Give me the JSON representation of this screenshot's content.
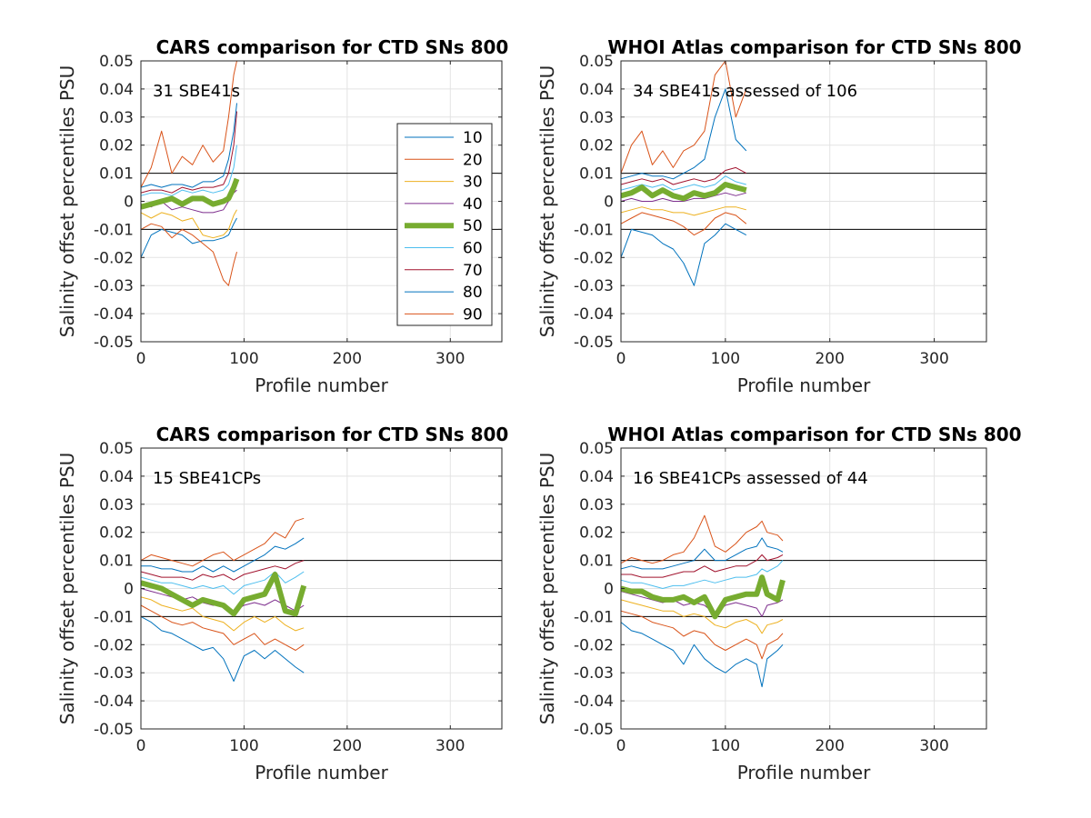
{
  "legend": {
    "entries": [
      "10",
      "20",
      "30",
      "40",
      "50",
      "60",
      "70",
      "80",
      "90"
    ],
    "colors": [
      "#0072BD",
      "#D95319",
      "#EDB120",
      "#7E2F8E",
      "#77AC30",
      "#4DBEEE",
      "#A2142F",
      "#0072BD",
      "#D95319"
    ]
  },
  "chart_data": [
    {
      "type": "line",
      "title": "CARS comparison for CTD SNs 800",
      "xlabel": "Profile number",
      "ylabel": "Salinity offset percentiles PSU",
      "annotation": "31 SBE41s",
      "xlim": [
        0,
        350
      ],
      "ylim": [
        -0.05,
        0.05
      ],
      "xticks": [
        "0",
        "100",
        "200",
        "300"
      ],
      "yticks": [
        "-0.05",
        "-0.04",
        "-0.03",
        "-0.02",
        "-0.01",
        "0",
        "0.01",
        "0.02",
        "0.03",
        "0.04",
        "0.05"
      ],
      "grid": true,
      "reference_lines": [
        0.01,
        -0.01
      ],
      "legend_position": "inside-right",
      "x": [
        0,
        10,
        20,
        30,
        40,
        50,
        60,
        70,
        80,
        85,
        90,
        93
      ],
      "series": [
        {
          "name": "10",
          "values": [
            -0.02,
            -0.012,
            -0.01,
            -0.011,
            -0.012,
            -0.015,
            -0.014,
            -0.014,
            -0.013,
            -0.012,
            -0.008,
            -0.006
          ]
        },
        {
          "name": "20",
          "values": [
            -0.01,
            -0.008,
            -0.009,
            -0.013,
            -0.01,
            -0.012,
            -0.015,
            -0.018,
            -0.028,
            -0.03,
            -0.022,
            -0.018
          ]
        },
        {
          "name": "30",
          "values": [
            -0.004,
            -0.006,
            -0.004,
            -0.005,
            -0.007,
            -0.006,
            -0.012,
            -0.013,
            -0.012,
            -0.01,
            -0.005,
            -0.003
          ]
        },
        {
          "name": "40",
          "values": [
            -0.001,
            -0.002,
            0.0,
            -0.003,
            -0.002,
            -0.003,
            -0.004,
            -0.004,
            -0.003,
            0.0,
            0.003,
            0.004
          ]
        },
        {
          "name": "50",
          "values": [
            -0.002,
            -0.001,
            0.0,
            0.001,
            -0.001,
            0.001,
            0.001,
            -0.001,
            0.0,
            0.001,
            0.005,
            0.008
          ]
        },
        {
          "name": "60",
          "values": [
            0.002,
            0.003,
            0.003,
            0.002,
            0.004,
            0.003,
            0.004,
            0.003,
            0.004,
            0.006,
            0.012,
            0.02
          ]
        },
        {
          "name": "70",
          "values": [
            0.003,
            0.004,
            0.004,
            0.003,
            0.005,
            0.004,
            0.005,
            0.005,
            0.006,
            0.01,
            0.02,
            0.032
          ]
        },
        {
          "name": "80",
          "values": [
            0.005,
            0.006,
            0.005,
            0.006,
            0.006,
            0.005,
            0.007,
            0.007,
            0.009,
            0.015,
            0.025,
            0.035
          ]
        },
        {
          "name": "90",
          "values": [
            0.005,
            0.012,
            0.025,
            0.01,
            0.016,
            0.013,
            0.02,
            0.014,
            0.018,
            0.03,
            0.045,
            0.05
          ]
        }
      ]
    },
    {
      "type": "line",
      "title": "WHOI Atlas comparison for CTD SNs 800",
      "xlabel": "Profile number",
      "ylabel": "Salinity offset percentiles PSU",
      "annotation": "34 SBE41s assessed of 106",
      "xlim": [
        0,
        350
      ],
      "ylim": [
        -0.05,
        0.05
      ],
      "xticks": [
        "0",
        "100",
        "200",
        "300"
      ],
      "yticks": [
        "-0.05",
        "-0.04",
        "-0.03",
        "-0.02",
        "-0.01",
        "0",
        "0.01",
        "0.02",
        "0.03",
        "0.04",
        "0.05"
      ],
      "grid": true,
      "reference_lines": [
        0.01,
        -0.01
      ],
      "x": [
        0,
        10,
        20,
        30,
        40,
        50,
        60,
        70,
        80,
        90,
        100,
        110,
        120
      ],
      "series": [
        {
          "name": "10",
          "values": [
            -0.02,
            -0.01,
            -0.011,
            -0.012,
            -0.015,
            -0.017,
            -0.022,
            -0.03,
            -0.015,
            -0.012,
            -0.008,
            -0.01,
            -0.012
          ]
        },
        {
          "name": "20",
          "values": [
            -0.008,
            -0.006,
            -0.004,
            -0.005,
            -0.006,
            -0.007,
            -0.009,
            -0.012,
            -0.01,
            -0.006,
            -0.004,
            -0.005,
            -0.008
          ]
        },
        {
          "name": "30",
          "values": [
            -0.004,
            -0.003,
            -0.002,
            -0.003,
            -0.003,
            -0.004,
            -0.004,
            -0.005,
            -0.004,
            -0.003,
            -0.002,
            -0.002,
            -0.003
          ]
        },
        {
          "name": "40",
          "values": [
            0.0,
            0.001,
            0.0,
            0.0,
            0.001,
            0.0,
            0.0,
            0.001,
            0.001,
            0.002,
            0.003,
            0.002,
            0.003
          ]
        },
        {
          "name": "50",
          "values": [
            0.002,
            0.003,
            0.005,
            0.002,
            0.004,
            0.002,
            0.001,
            0.003,
            0.002,
            0.003,
            0.006,
            0.005,
            0.004
          ]
        },
        {
          "name": "60",
          "values": [
            0.004,
            0.005,
            0.006,
            0.005,
            0.006,
            0.004,
            0.005,
            0.006,
            0.005,
            0.006,
            0.009,
            0.007,
            0.006
          ]
        },
        {
          "name": "70",
          "values": [
            0.006,
            0.007,
            0.008,
            0.007,
            0.008,
            0.006,
            0.007,
            0.008,
            0.007,
            0.008,
            0.011,
            0.012,
            0.01
          ]
        },
        {
          "name": "80",
          "values": [
            0.008,
            0.009,
            0.01,
            0.009,
            0.009,
            0.008,
            0.01,
            0.012,
            0.015,
            0.03,
            0.04,
            0.022,
            0.018
          ]
        },
        {
          "name": "90",
          "values": [
            0.01,
            0.02,
            0.025,
            0.013,
            0.018,
            0.012,
            0.018,
            0.02,
            0.025,
            0.045,
            0.05,
            0.03,
            0.04
          ]
        }
      ]
    },
    {
      "type": "line",
      "title": "CARS comparison for CTD SNs 800",
      "xlabel": "Profile number",
      "ylabel": "Salinity offset percentiles PSU",
      "annotation": "15 SBE41CPs",
      "xlim": [
        0,
        350
      ],
      "ylim": [
        -0.05,
        0.05
      ],
      "xticks": [
        "0",
        "100",
        "200",
        "300"
      ],
      "yticks": [
        "-0.05",
        "-0.04",
        "-0.03",
        "-0.02",
        "-0.01",
        "0",
        "0.01",
        "0.02",
        "0.03",
        "0.04",
        "0.05"
      ],
      "grid": true,
      "reference_lines": [
        0.01,
        -0.01
      ],
      "x": [
        0,
        10,
        20,
        30,
        40,
        50,
        60,
        70,
        80,
        90,
        100,
        110,
        120,
        130,
        140,
        150,
        158
      ],
      "series": [
        {
          "name": "10",
          "values": [
            -0.01,
            -0.012,
            -0.015,
            -0.016,
            -0.018,
            -0.02,
            -0.022,
            -0.021,
            -0.025,
            -0.033,
            -0.024,
            -0.022,
            -0.025,
            -0.022,
            -0.025,
            -0.028,
            -0.03
          ]
        },
        {
          "name": "20",
          "values": [
            -0.006,
            -0.008,
            -0.01,
            -0.012,
            -0.013,
            -0.012,
            -0.014,
            -0.015,
            -0.016,
            -0.02,
            -0.018,
            -0.016,
            -0.02,
            -0.018,
            -0.02,
            -0.022,
            -0.02
          ]
        },
        {
          "name": "30",
          "values": [
            -0.003,
            -0.004,
            -0.006,
            -0.007,
            -0.008,
            -0.007,
            -0.01,
            -0.011,
            -0.012,
            -0.015,
            -0.012,
            -0.01,
            -0.012,
            -0.01,
            -0.013,
            -0.015,
            -0.014
          ]
        },
        {
          "name": "40",
          "values": [
            0.0,
            -0.001,
            -0.002,
            -0.003,
            -0.004,
            -0.003,
            -0.005,
            -0.006,
            -0.006,
            -0.008,
            -0.006,
            -0.005,
            -0.006,
            -0.004,
            -0.006,
            -0.008,
            -0.006
          ]
        },
        {
          "name": "50",
          "values": [
            0.002,
            0.001,
            0.0,
            -0.002,
            -0.004,
            -0.006,
            -0.004,
            -0.005,
            -0.006,
            -0.009,
            -0.004,
            -0.003,
            -0.002,
            0.005,
            -0.008,
            -0.009,
            0.001
          ]
        },
        {
          "name": "60",
          "values": [
            0.004,
            0.003,
            0.002,
            0.002,
            0.001,
            0.0,
            0.001,
            0.0,
            0.001,
            -0.002,
            0.001,
            0.002,
            0.003,
            0.006,
            0.002,
            0.004,
            0.006
          ]
        },
        {
          "name": "70",
          "values": [
            0.006,
            0.005,
            0.004,
            0.004,
            0.004,
            0.003,
            0.005,
            0.004,
            0.005,
            0.003,
            0.005,
            0.006,
            0.007,
            0.008,
            0.007,
            0.009,
            0.01
          ]
        },
        {
          "name": "80",
          "values": [
            0.008,
            0.008,
            0.007,
            0.007,
            0.006,
            0.006,
            0.008,
            0.006,
            0.008,
            0.006,
            0.008,
            0.01,
            0.012,
            0.015,
            0.014,
            0.016,
            0.018
          ]
        },
        {
          "name": "90",
          "values": [
            0.01,
            0.012,
            0.011,
            0.01,
            0.009,
            0.008,
            0.01,
            0.012,
            0.013,
            0.01,
            0.012,
            0.014,
            0.016,
            0.02,
            0.018,
            0.024,
            0.025
          ]
        }
      ]
    },
    {
      "type": "line",
      "title": "WHOI Atlas comparison for CTD SNs 800",
      "xlabel": "Profile number",
      "ylabel": "Salinity offset percentiles PSU",
      "annotation": "16 SBE41CPs assessed of 44",
      "xlim": [
        0,
        350
      ],
      "ylim": [
        -0.05,
        0.05
      ],
      "xticks": [
        "0",
        "100",
        "200",
        "300"
      ],
      "yticks": [
        "-0.05",
        "-0.04",
        "-0.03",
        "-0.02",
        "-0.01",
        "0",
        "0.01",
        "0.02",
        "0.03",
        "0.04",
        "0.05"
      ],
      "grid": true,
      "reference_lines": [
        0.01,
        -0.01
      ],
      "x": [
        0,
        10,
        20,
        30,
        40,
        50,
        60,
        70,
        80,
        90,
        100,
        110,
        120,
        130,
        135,
        140,
        150,
        155
      ],
      "series": [
        {
          "name": "10",
          "values": [
            -0.012,
            -0.015,
            -0.016,
            -0.018,
            -0.02,
            -0.022,
            -0.027,
            -0.02,
            -0.025,
            -0.028,
            -0.03,
            -0.027,
            -0.025,
            -0.027,
            -0.035,
            -0.025,
            -0.022,
            -0.02
          ]
        },
        {
          "name": "20",
          "values": [
            -0.008,
            -0.009,
            -0.01,
            -0.012,
            -0.013,
            -0.014,
            -0.017,
            -0.015,
            -0.016,
            -0.02,
            -0.022,
            -0.02,
            -0.018,
            -0.02,
            -0.025,
            -0.02,
            -0.018,
            -0.016
          ]
        },
        {
          "name": "30",
          "values": [
            -0.004,
            -0.005,
            -0.006,
            -0.007,
            -0.008,
            -0.008,
            -0.01,
            -0.009,
            -0.01,
            -0.013,
            -0.014,
            -0.012,
            -0.011,
            -0.013,
            -0.016,
            -0.013,
            -0.012,
            -0.011
          ]
        },
        {
          "name": "40",
          "values": [
            -0.001,
            -0.002,
            -0.003,
            -0.004,
            -0.005,
            -0.004,
            -0.006,
            -0.005,
            -0.006,
            -0.009,
            -0.006,
            -0.005,
            -0.006,
            -0.007,
            -0.01,
            -0.006,
            -0.005,
            -0.004
          ]
        },
        {
          "name": "50",
          "values": [
            0.0,
            -0.001,
            -0.001,
            -0.003,
            -0.004,
            -0.004,
            -0.003,
            -0.005,
            -0.003,
            -0.01,
            -0.004,
            -0.003,
            -0.002,
            -0.002,
            0.004,
            -0.002,
            -0.004,
            0.003
          ]
        },
        {
          "name": "60",
          "values": [
            0.003,
            0.002,
            0.002,
            0.001,
            0.0,
            0.001,
            0.001,
            0.002,
            0.003,
            0.002,
            0.003,
            0.004,
            0.004,
            0.005,
            0.007,
            0.006,
            0.008,
            0.01
          ]
        },
        {
          "name": "70",
          "values": [
            0.005,
            0.005,
            0.004,
            0.004,
            0.004,
            0.005,
            0.006,
            0.006,
            0.008,
            0.006,
            0.007,
            0.008,
            0.008,
            0.01,
            0.012,
            0.01,
            0.011,
            0.012
          ]
        },
        {
          "name": "80",
          "values": [
            0.007,
            0.008,
            0.007,
            0.007,
            0.007,
            0.008,
            0.009,
            0.01,
            0.014,
            0.01,
            0.01,
            0.012,
            0.014,
            0.015,
            0.018,
            0.015,
            0.014,
            0.013
          ]
        },
        {
          "name": "90",
          "values": [
            0.009,
            0.011,
            0.01,
            0.009,
            0.01,
            0.012,
            0.013,
            0.018,
            0.026,
            0.015,
            0.013,
            0.016,
            0.02,
            0.022,
            0.024,
            0.02,
            0.019,
            0.017
          ]
        }
      ]
    }
  ]
}
